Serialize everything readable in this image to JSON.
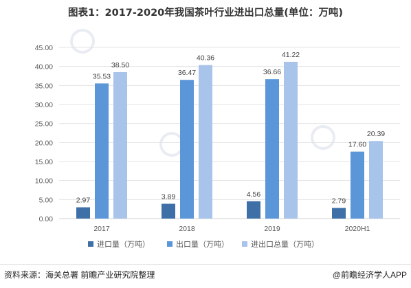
{
  "title": "图表1：2017-2020年我国茶叶行业进出口总量(单位：万吨)",
  "source": "资料来源：海关总署 前瞻产业研究院整理",
  "brand": "@前瞻经济学人APP",
  "chart_data": {
    "type": "bar",
    "title": "图表1：2017-2020年我国茶叶行业进出口总量(单位：万吨)",
    "categories": [
      "2017",
      "2018",
      "2019",
      "2020H1"
    ],
    "series": [
      {
        "name": "进口量（万吨）",
        "color": "#3e6fa6",
        "values": [
          2.97,
          3.89,
          4.56,
          2.79
        ]
      },
      {
        "name": "出口量（万吨）",
        "color": "#5b96d8",
        "values": [
          35.53,
          36.47,
          36.66,
          17.6
        ]
      },
      {
        "name": "进出口总量（万吨）",
        "color": "#a8c4ea",
        "values": [
          38.5,
          40.36,
          41.22,
          20.39
        ]
      }
    ],
    "ylim": [
      0,
      45
    ],
    "yticks": [
      "0.00",
      "5.00",
      "10.00",
      "15.00",
      "20.00",
      "25.00",
      "30.00",
      "35.00",
      "40.00",
      "45.00"
    ],
    "data_labels": [
      [
        "2.97",
        "3.89",
        "4.56",
        "2.79"
      ],
      [
        "35.53",
        "36.47",
        "36.66",
        "17.60"
      ],
      [
        "38.50",
        "40.36",
        "41.22",
        "20.39"
      ]
    ],
    "grid": true,
    "legend_position": "bottom"
  }
}
